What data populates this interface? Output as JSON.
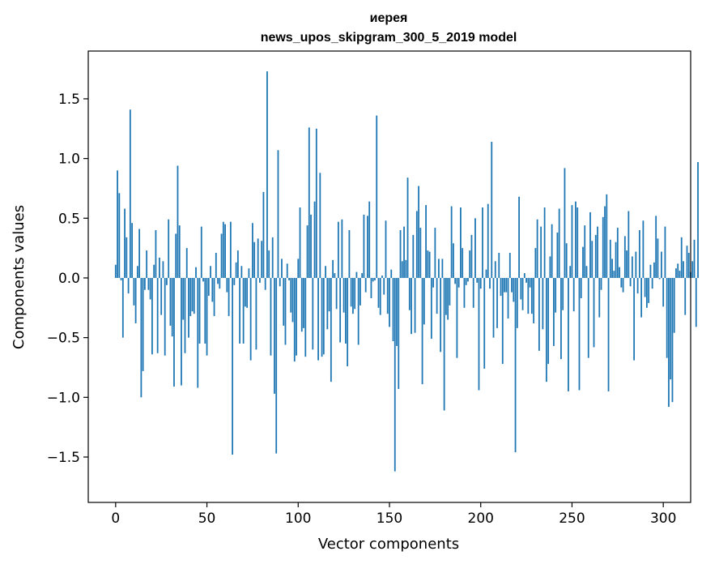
{
  "chart_data": {
    "type": "bar",
    "title_line1": "иерея",
    "title_line2": "news_upos_skipgram_300_5_2019 model",
    "xlabel": "Vector components",
    "ylabel": "Components values",
    "xlim": [
      -15,
      315
    ],
    "ylim": [
      -1.88,
      1.9
    ],
    "xticks": [
      0,
      50,
      100,
      150,
      200,
      250,
      300
    ],
    "xtick_labels": [
      "0",
      "50",
      "100",
      "150",
      "200",
      "250",
      "300"
    ],
    "yticks": [
      -1.5,
      -1.0,
      -0.5,
      0.0,
      0.5,
      1.0,
      1.5
    ],
    "ytick_labels": [
      "−1.5",
      "−1.0",
      "−0.5",
      "0.0",
      "0.5",
      "1.0",
      "1.5"
    ],
    "bar_color": "#1f77b4",
    "grid": false,
    "legend": "none",
    "values": [
      0.11,
      0.9,
      0.71,
      -0.02,
      -0.5,
      0.58,
      0.34,
      -0.13,
      1.41,
      0.46,
      -0.23,
      -0.38,
      0.1,
      0.41,
      -1.0,
      -0.78,
      -0.1,
      0.23,
      -0.1,
      -0.18,
      -0.64,
      0.11,
      0.4,
      -0.63,
      0.17,
      -0.31,
      0.14,
      -0.65,
      -0.06,
      0.49,
      -0.4,
      -0.49,
      -0.91,
      0.37,
      0.94,
      0.44,
      -0.9,
      -0.35,
      -0.63,
      0.25,
      -0.5,
      -0.32,
      -0.28,
      -0.3,
      0.09,
      -0.92,
      -0.55,
      0.43,
      -0.03,
      -0.55,
      -0.65,
      -0.15,
      0.1,
      -0.2,
      -0.32,
      0.21,
      -0.05,
      -0.09,
      0.37,
      0.47,
      0.45,
      -0.12,
      -0.32,
      0.47,
      -1.48,
      -0.06,
      0.13,
      0.23,
      -0.55,
      0.1,
      -0.55,
      -0.24,
      -0.25,
      0.08,
      -0.69,
      0.46,
      0.3,
      -0.6,
      0.33,
      -0.04,
      0.31,
      0.72,
      -0.1,
      1.73,
      0.23,
      -0.65,
      0.34,
      -0.97,
      -1.47,
      1.07,
      -0.07,
      0.16,
      -0.4,
      -0.56,
      0.12,
      -0.02,
      -0.29,
      -0.37,
      -0.7,
      -0.65,
      0.16,
      0.59,
      -0.45,
      -0.42,
      -0.66,
      0.44,
      1.26,
      0.53,
      -0.6,
      0.64,
      1.25,
      -0.69,
      0.88,
      -0.66,
      -0.64,
      0.1,
      -0.43,
      -0.28,
      -0.87,
      0.15,
      0.04,
      -0.26,
      0.47,
      -0.54,
      0.49,
      -0.29,
      -0.55,
      -0.74,
      0.4,
      -0.24,
      -0.3,
      -0.26,
      0.05,
      -0.56,
      -0.23,
      0.04,
      0.53,
      -0.12,
      0.52,
      0.64,
      -0.17,
      -0.03,
      -0.02,
      1.36,
      -0.25,
      -0.31,
      0.02,
      -0.14,
      0.48,
      -0.3,
      -0.41,
      0.07,
      -0.53,
      -1.62,
      -0.57,
      -0.93,
      0.4,
      0.14,
      0.43,
      0.15,
      0.84,
      -0.27,
      -0.47,
      0.36,
      -0.46,
      0.56,
      0.77,
      0.42,
      -0.89,
      -0.39,
      0.61,
      0.23,
      0.22,
      -0.51,
      -0.08,
      0.42,
      -0.3,
      0.16,
      -0.62,
      0.16,
      -1.11,
      -0.31,
      -0.35,
      -0.23,
      0.6,
      0.29,
      -0.05,
      -0.67,
      -0.08,
      0.59,
      0.25,
      -0.25,
      -0.06,
      -0.03,
      0.23,
      0.36,
      -0.25,
      0.5,
      -0.04,
      -0.94,
      -0.09,
      0.59,
      -0.76,
      0.07,
      0.62,
      -0.09,
      1.14,
      -0.5,
      0.14,
      -0.42,
      0.21,
      -0.15,
      -0.72,
      -0.12,
      -0.12,
      -0.34,
      0.21,
      -0.12,
      -0.2,
      -1.46,
      -0.42,
      0.68,
      -0.18,
      -0.27,
      0.04,
      -0.04,
      -0.3,
      -0.08,
      -0.3,
      -0.38,
      0.25,
      0.49,
      -0.61,
      0.43,
      -0.43,
      0.59,
      -0.87,
      -0.72,
      0.18,
      0.45,
      -0.57,
      -0.29,
      0.38,
      0.58,
      -0.68,
      -0.27,
      0.92,
      0.29,
      -0.95,
      0.1,
      0.61,
      -0.28,
      0.64,
      0.59,
      -0.94,
      -0.17,
      0.26,
      0.44,
      0.1,
      -0.67,
      0.55,
      0.31,
      -0.58,
      0.36,
      0.43,
      -0.33,
      -0.1,
      0.51,
      0.6,
      0.7,
      -0.95,
      0.32,
      0.16,
      0.06,
      0.3,
      0.42,
      0.09,
      -0.08,
      -0.12,
      0.35,
      0.23,
      0.56,
      -0.07,
      0.18,
      -0.69,
      0.22,
      -0.13,
      0.4,
      -0.33,
      0.48,
      -0.16,
      -0.25,
      -0.21,
      0.11,
      -0.09,
      0.13,
      0.52,
      0.33,
      -0.01,
      0.22,
      -0.24,
      0.43,
      -0.67,
      -1.08,
      -0.85,
      -1.04,
      -0.46,
      0.08,
      0.12,
      0.06,
      0.34,
      0.14,
      -0.31,
      0.27,
      0.21,
      0.05,
      0.14,
      0.32,
      -0.41,
      0.97
    ]
  }
}
